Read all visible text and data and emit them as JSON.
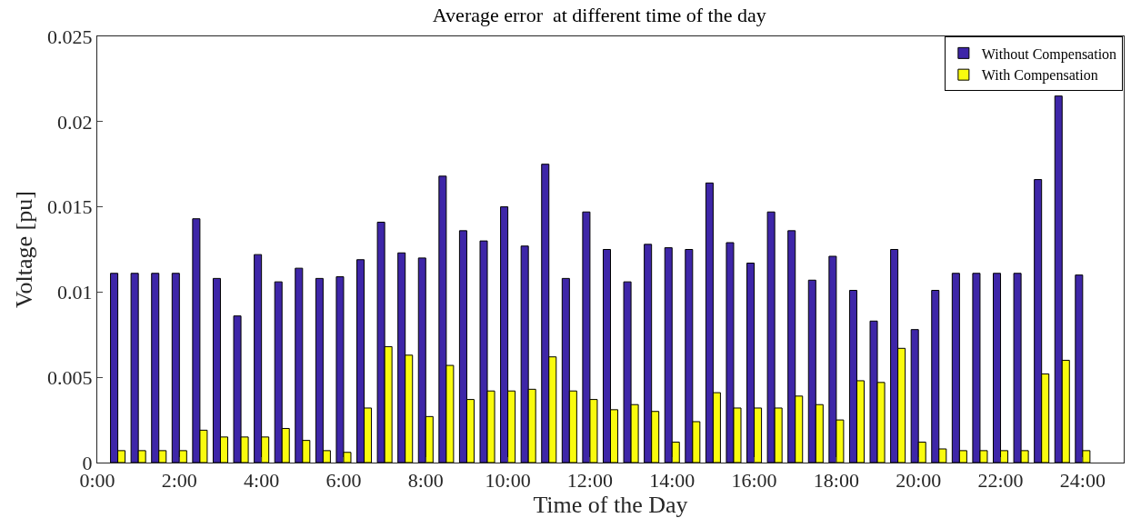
{
  "chart_data": {
    "type": "bar",
    "title": "Average error  at different time of the day",
    "xlabel": "Time of the Day",
    "ylabel": "Voltage [pu]",
    "x": [
      0.5,
      1,
      1.5,
      2,
      2.5,
      3,
      3.5,
      4,
      4.5,
      5,
      5.5,
      6,
      6.5,
      7,
      7.5,
      8,
      8.5,
      9,
      9.5,
      10,
      10.5,
      11,
      11.5,
      12,
      12.5,
      13,
      13.5,
      14,
      14.5,
      15,
      15.5,
      16,
      16.5,
      17,
      17.5,
      18,
      18.5,
      19,
      19.5,
      20,
      20.5,
      21,
      21.5,
      22,
      22.5,
      23,
      23.5,
      24
    ],
    "series": [
      {
        "name": "Without Compensation",
        "color": "#3e26a8",
        "values": [
          0.0111,
          0.0111,
          0.0111,
          0.0111,
          0.0143,
          0.0108,
          0.0086,
          0.0122,
          0.0106,
          0.0114,
          0.0108,
          0.0109,
          0.0119,
          0.0141,
          0.0123,
          0.012,
          0.0168,
          0.0136,
          0.013,
          0.015,
          0.0127,
          0.0175,
          0.0108,
          0.0147,
          0.0125,
          0.0106,
          0.0128,
          0.0126,
          0.0125,
          0.0164,
          0.0129,
          0.0117,
          0.0147,
          0.0136,
          0.0107,
          0.0121,
          0.0101,
          0.0083,
          0.0125,
          0.0078,
          0.0101,
          0.0111,
          0.0111,
          0.0111,
          0.0111,
          0.0166,
          0.0215,
          0.011
        ]
      },
      {
        "name": "With Compensation",
        "color": "#f9fb0e",
        "values": [
          0.0007,
          0.0007,
          0.0007,
          0.0007,
          0.0019,
          0.0015,
          0.0015,
          0.0015,
          0.002,
          0.0013,
          0.0007,
          0.0006,
          0.0032,
          0.0068,
          0.0063,
          0.0027,
          0.0057,
          0.0037,
          0.0042,
          0.0042,
          0.0043,
          0.0062,
          0.0042,
          0.0037,
          0.0031,
          0.0034,
          0.003,
          0.0012,
          0.0024,
          0.0041,
          0.0032,
          0.0032,
          0.0032,
          0.0039,
          0.0034,
          0.0025,
          0.0048,
          0.0047,
          0.0067,
          0.0012,
          0.0008,
          0.0007,
          0.0007,
          0.0007,
          0.0007,
          0.0052,
          0.006,
          0.0007
        ]
      }
    ],
    "xlim": [
      0,
      25
    ],
    "xticks": [
      {
        "value": 0,
        "label": "0:00"
      },
      {
        "value": 2,
        "label": "2:00"
      },
      {
        "value": 4,
        "label": "4:00"
      },
      {
        "value": 6,
        "label": "6:00"
      },
      {
        "value": 8,
        "label": "8:00"
      },
      {
        "value": 10,
        "label": "10:00"
      },
      {
        "value": 12,
        "label": "12:00"
      },
      {
        "value": 14,
        "label": "14:00"
      },
      {
        "value": 16,
        "label": "16:00"
      },
      {
        "value": 18,
        "label": "18:00"
      },
      {
        "value": 20,
        "label": "20:00"
      },
      {
        "value": 22,
        "label": "22:00"
      },
      {
        "value": 24,
        "label": "24:00"
      }
    ],
    "ylim": [
      0,
      0.025
    ],
    "yticks": [
      0,
      0.005,
      0.01,
      0.015,
      0.02,
      0.025
    ],
    "grid": false,
    "legend": "top right"
  }
}
